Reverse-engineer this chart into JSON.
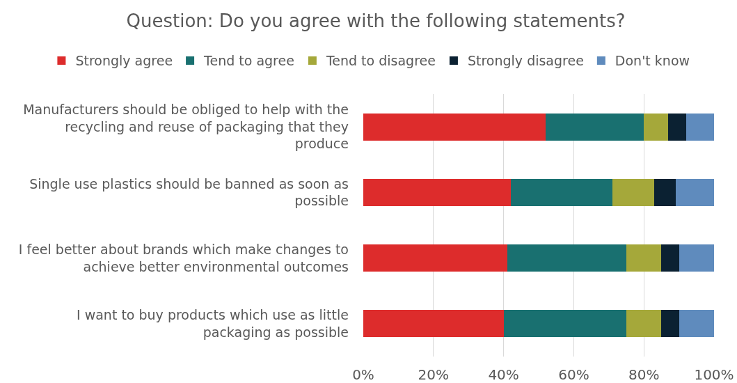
{
  "chart_data": {
    "type": "bar",
    "title": "Question: Do you agree with the following statements?",
    "orientation": "horizontal",
    "stacked": true,
    "categories": [
      "Manufacturers should be obliged to help with the recycling and reuse of packaging that they produce",
      "Single use plastics should be banned as soon as possible",
      "I feel better about brands which make changes to achieve better environmental outcomes",
      "I want to buy products which use as little packaging as possible"
    ],
    "series": [
      {
        "name": "Strongly agree",
        "color": "#dd2c2c",
        "values": [
          52,
          42,
          41,
          40
        ]
      },
      {
        "name": "Tend to agree",
        "color": "#197070",
        "values": [
          28,
          29,
          34,
          35
        ]
      },
      {
        "name": "Tend to disagree",
        "color": "#a5a83a",
        "values": [
          7,
          12,
          10,
          10
        ]
      },
      {
        "name": "Strongly disagree",
        "color": "#0b2132",
        "values": [
          5,
          6,
          5,
          5
        ]
      },
      {
        "name": "Don't know",
        "color": "#5f8bbd",
        "values": [
          8,
          11,
          10,
          10
        ]
      }
    ],
    "xlim": [
      0,
      100
    ],
    "xticks": [
      {
        "value": 0,
        "label": "0%"
      },
      {
        "value": 20,
        "label": "20%"
      },
      {
        "value": 40,
        "label": "40%"
      },
      {
        "value": 60,
        "label": "60%"
      },
      {
        "value": 80,
        "label": "80%"
      },
      {
        "value": 100,
        "label": "100%"
      }
    ],
    "grid": "x",
    "legend": "top"
  }
}
